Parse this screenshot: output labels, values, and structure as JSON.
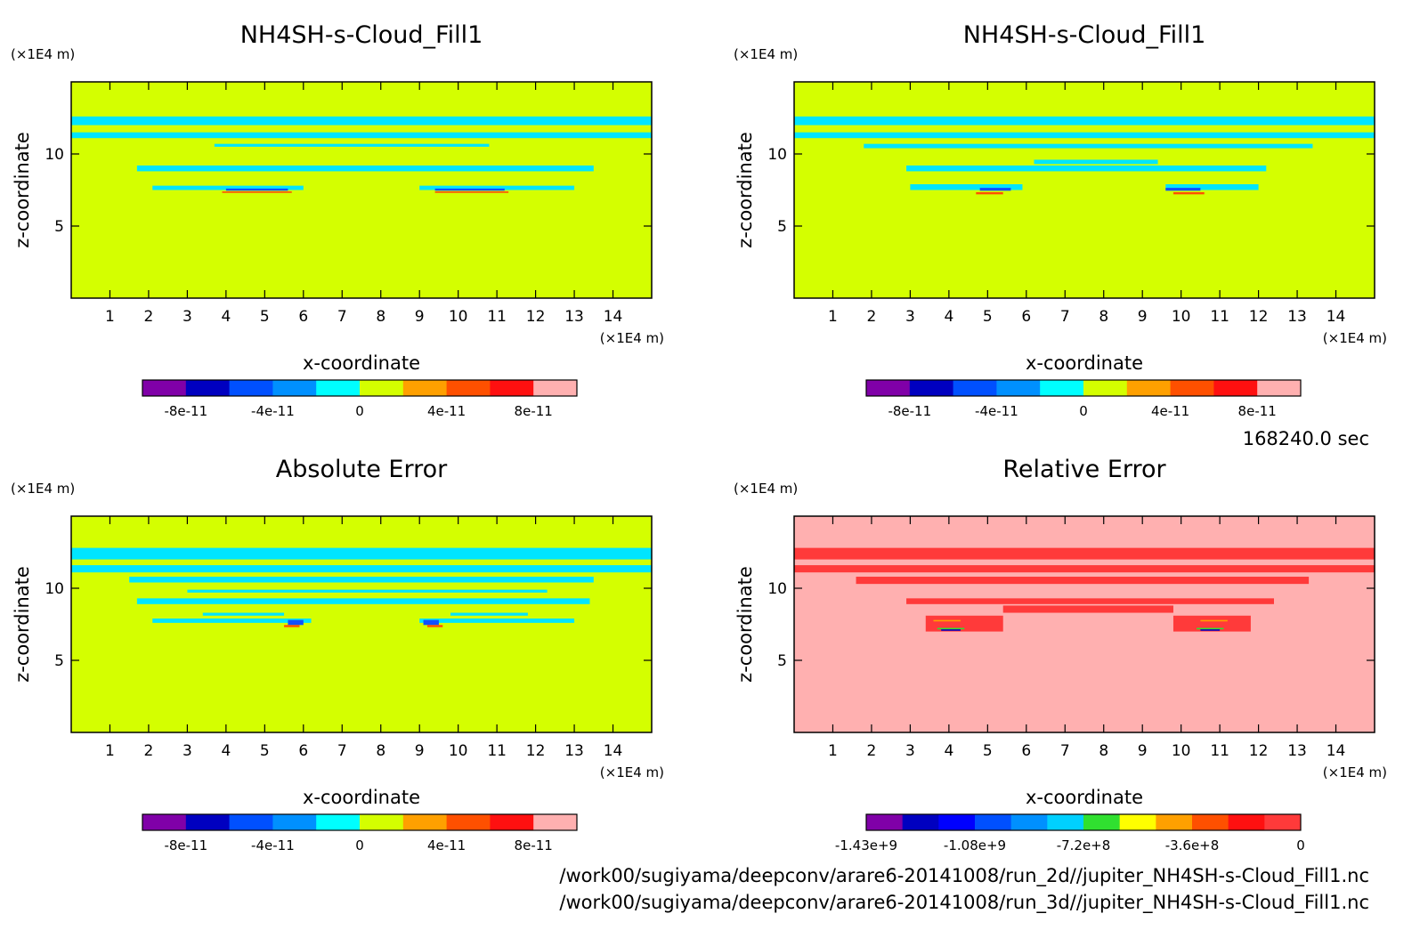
{
  "chart_data": [
    {
      "type": "heatmap",
      "title": "NH4SH-s-Cloud_Fill1",
      "xlabel": "x-coordinate",
      "ylabel": "z-coordinate",
      "x_unit": "(×1E4 m)",
      "y_unit": "(×1E4 m)",
      "xlim": [
        0,
        15
      ],
      "ylim": [
        0,
        15
      ],
      "x_ticks": [
        1,
        2,
        3,
        4,
        5,
        6,
        7,
        8,
        9,
        10,
        11,
        12,
        13,
        14
      ],
      "y_ticks": [
        5,
        10
      ],
      "background_color": "#d4ff00",
      "colorbar": {
        "colors": [
          "#8000a8",
          "#0000c0",
          "#0050ff",
          "#0090ff",
          "#00ffff",
          "#d4ff00",
          "#ffa000",
          "#ff5000",
          "#ff1010",
          "#ffb0b0"
        ],
        "labels": [
          "-8e-11",
          "-4e-11",
          "0",
          "4e-11",
          "8e-11"
        ],
        "label_positions": [
          1,
          3,
          5,
          7,
          9
        ]
      },
      "features": [
        {
          "color": "#00e5ff",
          "x": [
            0,
            15
          ],
          "z": [
            12.0,
            12.6
          ]
        },
        {
          "color": "#00e5ff",
          "x": [
            0,
            15
          ],
          "z": [
            11.1,
            11.5
          ]
        },
        {
          "color": "#00e5ff",
          "x": [
            3.7,
            10.8
          ],
          "z": [
            10.5,
            10.7
          ]
        },
        {
          "color": "#00e5ff",
          "x": [
            1.7,
            13.5
          ],
          "z": [
            8.8,
            9.2
          ]
        },
        {
          "color": "#00e5ff",
          "x": [
            2.1,
            6.0
          ],
          "z": [
            7.5,
            7.8
          ]
        },
        {
          "color": "#00e5ff",
          "x": [
            9.0,
            13.0
          ],
          "z": [
            7.5,
            7.8
          ]
        },
        {
          "color": "#1050ff",
          "x": [
            4.0,
            5.6
          ],
          "z": [
            7.45,
            7.6
          ]
        },
        {
          "color": "#1050ff",
          "x": [
            9.4,
            11.2
          ],
          "z": [
            7.45,
            7.6
          ]
        },
        {
          "color": "#ff5000",
          "x": [
            3.9,
            5.7
          ],
          "z": [
            7.3,
            7.4
          ]
        },
        {
          "color": "#ff5000",
          "x": [
            9.4,
            11.3
          ],
          "z": [
            7.3,
            7.4
          ]
        }
      ]
    },
    {
      "type": "heatmap",
      "title": "NH4SH-s-Cloud_Fill1",
      "xlabel": "x-coordinate",
      "ylabel": "z-coordinate",
      "x_unit": "(×1E4 m)",
      "y_unit": "(×1E4 m)",
      "xlim": [
        0,
        15
      ],
      "ylim": [
        0,
        15
      ],
      "x_ticks": [
        1,
        2,
        3,
        4,
        5,
        6,
        7,
        8,
        9,
        10,
        11,
        12,
        13,
        14
      ],
      "y_ticks": [
        5,
        10
      ],
      "background_color": "#d4ff00",
      "colorbar": {
        "colors": [
          "#8000a8",
          "#0000c0",
          "#0050ff",
          "#0090ff",
          "#00ffff",
          "#d4ff00",
          "#ffa000",
          "#ff5000",
          "#ff1010",
          "#ffb0b0"
        ],
        "labels": [
          "-8e-11",
          "-4e-11",
          "0",
          "4e-11",
          "8e-11"
        ],
        "label_positions": [
          1,
          3,
          5,
          7,
          9
        ]
      },
      "features": [
        {
          "color": "#00e5ff",
          "x": [
            0,
            15
          ],
          "z": [
            12.0,
            12.6
          ]
        },
        {
          "color": "#00e5ff",
          "x": [
            0,
            15
          ],
          "z": [
            11.1,
            11.5
          ]
        },
        {
          "color": "#00e5ff",
          "x": [
            1.8,
            13.4
          ],
          "z": [
            10.4,
            10.7
          ]
        },
        {
          "color": "#00e5ff",
          "x": [
            2.9,
            12.2
          ],
          "z": [
            8.8,
            9.2
          ]
        },
        {
          "color": "#00e5ff",
          "x": [
            6.2,
            9.4
          ],
          "z": [
            9.3,
            9.6
          ]
        },
        {
          "color": "#00e5ff",
          "x": [
            3.0,
            5.9
          ],
          "z": [
            7.5,
            7.9
          ]
        },
        {
          "color": "#00e5ff",
          "x": [
            9.6,
            12.0
          ],
          "z": [
            7.5,
            7.9
          ]
        },
        {
          "color": "#1050ff",
          "x": [
            4.8,
            5.6
          ],
          "z": [
            7.45,
            7.65
          ]
        },
        {
          "color": "#1050ff",
          "x": [
            9.6,
            10.5
          ],
          "z": [
            7.45,
            7.65
          ]
        },
        {
          "color": "#ff5000",
          "x": [
            4.7,
            5.4
          ],
          "z": [
            7.2,
            7.35
          ]
        },
        {
          "color": "#ff5000",
          "x": [
            9.8,
            10.6
          ],
          "z": [
            7.2,
            7.35
          ]
        }
      ]
    },
    {
      "type": "heatmap",
      "title": "Absolute Error",
      "xlabel": "x-coordinate",
      "ylabel": "z-coordinate",
      "x_unit": "(×1E4 m)",
      "y_unit": "(×1E4 m)",
      "xlim": [
        0,
        15
      ],
      "ylim": [
        0,
        15
      ],
      "x_ticks": [
        1,
        2,
        3,
        4,
        5,
        6,
        7,
        8,
        9,
        10,
        11,
        12,
        13,
        14
      ],
      "y_ticks": [
        5,
        10
      ],
      "background_color": "#d4ff00",
      "colorbar": {
        "colors": [
          "#8000a8",
          "#0000c0",
          "#0050ff",
          "#0090ff",
          "#00ffff",
          "#d4ff00",
          "#ffa000",
          "#ff5000",
          "#ff1010",
          "#ffb0b0"
        ],
        "labels": [
          "-8e-11",
          "-4e-11",
          "0",
          "4e-11",
          "8e-11"
        ],
        "label_positions": [
          1,
          3,
          5,
          7,
          9
        ]
      },
      "features": [
        {
          "color": "#00e5ff",
          "x": [
            0,
            15
          ],
          "z": [
            12.0,
            12.8
          ]
        },
        {
          "color": "#00e5ff",
          "x": [
            0,
            15
          ],
          "z": [
            11.1,
            11.6
          ]
        },
        {
          "color": "#00e5ff",
          "x": [
            1.5,
            13.5
          ],
          "z": [
            10.4,
            10.8
          ]
        },
        {
          "color": "#00e5ff",
          "x": [
            1.7,
            13.4
          ],
          "z": [
            8.9,
            9.3
          ]
        },
        {
          "color": "#00e5ff",
          "x": [
            3.0,
            12.3
          ],
          "z": [
            9.7,
            9.9
          ]
        },
        {
          "color": "#00e5ff",
          "x": [
            2.1,
            6.2
          ],
          "z": [
            7.6,
            7.9
          ]
        },
        {
          "color": "#00e5ff",
          "x": [
            9.0,
            13.0
          ],
          "z": [
            7.6,
            7.9
          ]
        },
        {
          "color": "#00e5ff",
          "x": [
            3.4,
            5.5
          ],
          "z": [
            8.1,
            8.3
          ]
        },
        {
          "color": "#00e5ff",
          "x": [
            9.8,
            11.8
          ],
          "z": [
            8.1,
            8.3
          ]
        },
        {
          "color": "#1050ff",
          "x": [
            5.6,
            6.0
          ],
          "z": [
            7.45,
            7.8
          ]
        },
        {
          "color": "#1050ff",
          "x": [
            9.1,
            9.5
          ],
          "z": [
            7.45,
            7.8
          ]
        },
        {
          "color": "#ff5000",
          "x": [
            5.5,
            5.9
          ],
          "z": [
            7.3,
            7.45
          ]
        },
        {
          "color": "#ff5000",
          "x": [
            9.2,
            9.6
          ],
          "z": [
            7.3,
            7.45
          ]
        }
      ]
    },
    {
      "type": "heatmap",
      "title": "Relative Error",
      "xlabel": "x-coordinate",
      "ylabel": "z-coordinate",
      "x_unit": "(×1E4 m)",
      "y_unit": "(×1E4 m)",
      "xlim": [
        0,
        15
      ],
      "ylim": [
        0,
        15
      ],
      "x_ticks": [
        1,
        2,
        3,
        4,
        5,
        6,
        7,
        8,
        9,
        10,
        11,
        12,
        13,
        14
      ],
      "y_ticks": [
        5,
        10
      ],
      "background_color": "#ffb0b0",
      "colorbar": {
        "colors": [
          "#8000a8",
          "#0000c0",
          "#0000ff",
          "#0050ff",
          "#0090ff",
          "#00d0ff",
          "#30e030",
          "#ffff00",
          "#ffa000",
          "#ff5000",
          "#ff1010",
          "#ff3a3a"
        ],
        "labels": [
          "-1.43e+9",
          "-1.08e+9",
          "-7.2e+8",
          "-3.6e+8",
          "0"
        ],
        "label_positions": [
          0,
          3,
          6,
          9,
          12
        ]
      },
      "features": [
        {
          "color": "#ff3a3a",
          "x": [
            0,
            15
          ],
          "z": [
            12.0,
            12.8
          ]
        },
        {
          "color": "#ff3a3a",
          "x": [
            0,
            15
          ],
          "z": [
            11.1,
            11.6
          ]
        },
        {
          "color": "#ff3a3a",
          "x": [
            1.6,
            13.3
          ],
          "z": [
            10.3,
            10.8
          ]
        },
        {
          "color": "#ff3a3a",
          "x": [
            2.9,
            12.4
          ],
          "z": [
            8.9,
            9.3
          ]
        },
        {
          "color": "#ff3a3a",
          "x": [
            5.4,
            9.8
          ],
          "z": [
            8.3,
            8.8
          ]
        },
        {
          "color": "#ff3a3a",
          "x": [
            3.4,
            5.4
          ],
          "z": [
            7.0,
            8.1
          ]
        },
        {
          "color": "#ff3a3a",
          "x": [
            9.8,
            11.8
          ],
          "z": [
            7.0,
            8.1
          ]
        },
        {
          "color": "#ffa000",
          "x": [
            3.6,
            4.3
          ],
          "z": [
            7.7,
            7.8
          ]
        },
        {
          "color": "#ffa000",
          "x": [
            10.5,
            11.2
          ],
          "z": [
            7.7,
            7.8
          ]
        },
        {
          "color": "#30e030",
          "x": [
            3.7,
            4.4
          ],
          "z": [
            7.15,
            7.25
          ]
        },
        {
          "color": "#30e030",
          "x": [
            10.4,
            11.1
          ],
          "z": [
            7.15,
            7.25
          ]
        },
        {
          "color": "#0000c0",
          "x": [
            3.8,
            4.3
          ],
          "z": [
            7.05,
            7.15
          ]
        },
        {
          "color": "#0000c0",
          "x": [
            10.5,
            11.0
          ],
          "z": [
            7.05,
            7.15
          ]
        }
      ]
    }
  ],
  "time_label": "168240.0 sec",
  "files": [
    "/work00/sugiyama/deepconv/arare6-20141008/run_2d//jupiter_NH4SH-s-Cloud_Fill1.nc",
    "/work00/sugiyama/deepconv/arare6-20141008/run_3d//jupiter_NH4SH-s-Cloud_Fill1.nc"
  ]
}
